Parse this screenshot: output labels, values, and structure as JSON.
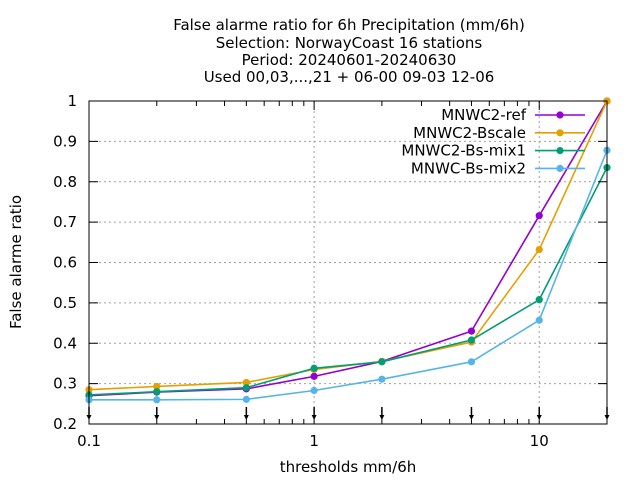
{
  "chart_data": {
    "type": "line",
    "title_lines": [
      "False alarme ratio  for 6h Precipitation (mm/6h)",
      "Selection: NorwayCoast     16 stations",
      "Period: 20240601-20240630",
      "Used 00,03,...,21 + 06-00 09-03 12-06"
    ],
    "xlabel": "thresholds mm/6h",
    "ylabel": "False alarme ratio",
    "x_scale": "log",
    "xlim": [
      0.1,
      20
    ],
    "ylim": [
      0.2,
      1.0
    ],
    "x_tick_labels": [
      "0.1",
      "1",
      "10"
    ],
    "x_tick_values": [
      0.1,
      1,
      10
    ],
    "y_tick_labels": [
      "0.2",
      "0.3",
      "0.4",
      "0.5",
      "0.6",
      "0.7",
      "0.8",
      "0.9",
      "1"
    ],
    "y_tick_values": [
      0.2,
      0.3,
      0.4,
      0.5,
      0.6,
      0.7,
      0.8,
      0.9,
      1.0
    ],
    "grid": true,
    "legend_position": "top-right",
    "x": [
      0.1,
      0.2,
      0.5,
      1,
      2,
      5,
      10,
      20
    ],
    "series": [
      {
        "name": "MNWC2-ref",
        "color": "#9400d3",
        "values": [
          0.27,
          0.279,
          0.287,
          0.318,
          0.355,
          0.43,
          0.716,
          1.0
        ]
      },
      {
        "name": "MNWC2-Bscale",
        "color": "#e69f00",
        "values": [
          0.285,
          0.293,
          0.303,
          0.335,
          0.355,
          0.403,
          0.632,
          1.0
        ]
      },
      {
        "name": "MNWC2-Bs-mix1",
        "color": "#009e73",
        "values": [
          0.272,
          0.28,
          0.29,
          0.338,
          0.354,
          0.408,
          0.508,
          0.835
        ]
      },
      {
        "name": "MNWC-Bs-mix2",
        "color": "#56b4e9",
        "values": [
          0.26,
          0.26,
          0.261,
          0.283,
          0.311,
          0.354,
          0.457,
          0.878
        ]
      }
    ],
    "x_markers": [
      0.1,
      0.2,
      0.5,
      1,
      2,
      5,
      10,
      20
    ]
  }
}
